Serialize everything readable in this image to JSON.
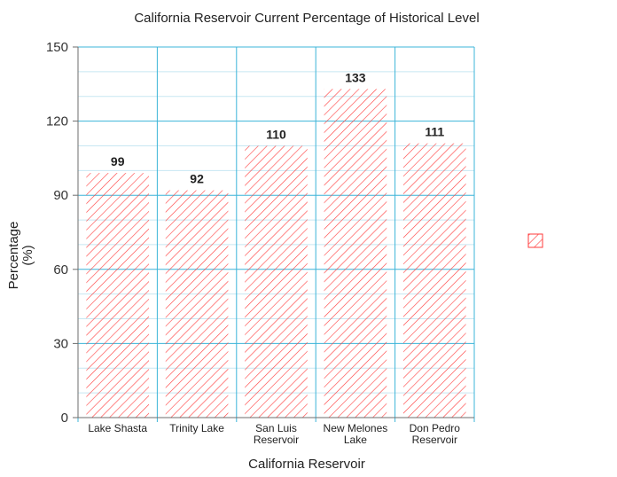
{
  "chart_data": {
    "type": "bar",
    "title": "California Reservoir Current Percentage of Historical Level",
    "xlabel": "California Reservoir",
    "ylabel": "Percentage (%)",
    "ylabel_lines": [
      "Percentage",
      "(%)"
    ],
    "categories": [
      "Lake Shasta",
      "Trinity Lake",
      "San Luis Reservoir",
      "New Melones Lake",
      "Don Pedro Reservoir"
    ],
    "category_lines": [
      [
        "Lake Shasta"
      ],
      [
        "Trinity Lake"
      ],
      [
        "San Luis",
        "Reservoir"
      ],
      [
        "New Melones",
        "Lake"
      ],
      [
        "Don Pedro",
        "Reservoir"
      ]
    ],
    "values": [
      99,
      92,
      110,
      133,
      111
    ],
    "ylim": [
      0,
      150
    ],
    "yticks": [
      0,
      30,
      60,
      90,
      120,
      150
    ],
    "grid": true,
    "bar_pattern": "diagonal-hatch",
    "legend_position": "right",
    "colors": {
      "bar": "#ff3b3b",
      "grid": "#3cb4d8",
      "minor_grid": "#c7e7f2",
      "axis": "#6e6e6e"
    }
  }
}
